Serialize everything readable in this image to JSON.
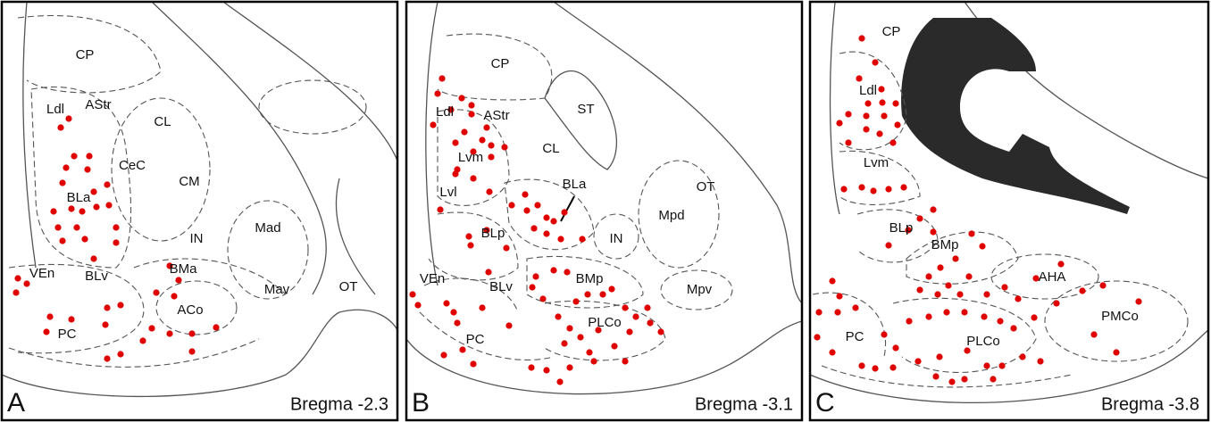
{
  "panels": [
    {
      "letter": "A",
      "caption": "Bregma -2.3",
      "regions": [
        "CP",
        "Ldl",
        "AStr",
        "CL",
        "CeC",
        "CM",
        "BLa",
        "IN",
        "Mad",
        "VEn",
        "BLv",
        "BMa",
        "Mav",
        "OT",
        "ACo",
        "PC"
      ]
    },
    {
      "letter": "B",
      "caption": "Bregma -3.1",
      "regions": [
        "CP",
        "Ldl",
        "AStr",
        "ST",
        "CL",
        "Lvm",
        "BLa",
        "OT",
        "Lvl",
        "Mpd",
        "BLp",
        "IN",
        "VEn",
        "BLv",
        "BMp",
        "Mpv",
        "PLCo",
        "PC"
      ]
    },
    {
      "letter": "C",
      "caption": "Bregma -3.8",
      "regions": [
        "CP",
        "Ldl",
        "Lvm",
        "BLp",
        "BMp",
        "AHA",
        "PMCo",
        "PC",
        "PLCo"
      ]
    }
  ]
}
